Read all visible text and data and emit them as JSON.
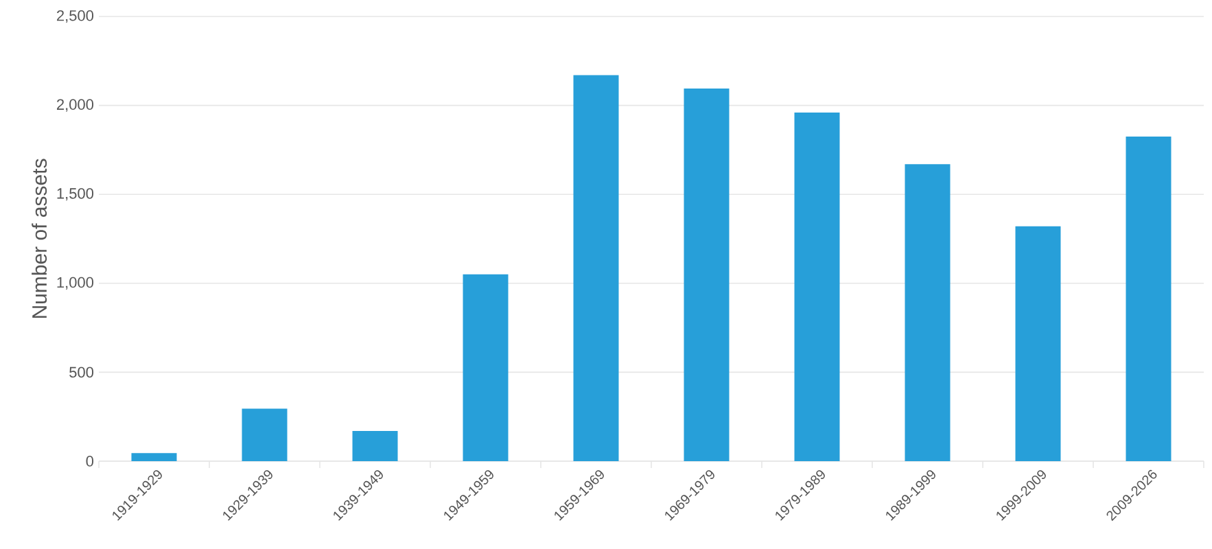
{
  "chart_data": {
    "type": "bar",
    "ylabel": "Number of assets",
    "categories": [
      "1919-1929",
      "1929-1939",
      "1939-1949",
      "1949-1959",
      "1959-1969",
      "1969-1979",
      "1979-1989",
      "1989-1999",
      "1999-2009",
      "2009-2026"
    ],
    "values": [
      45,
      295,
      170,
      1050,
      2170,
      2095,
      1960,
      1670,
      1320,
      1825
    ],
    "color": "#279fd9",
    "ylim": [
      0,
      2500
    ],
    "yticks": [
      {
        "value": 0,
        "label": "0"
      },
      {
        "value": 500,
        "label": "500"
      },
      {
        "value": 1000,
        "label": "1,000"
      },
      {
        "value": 1500,
        "label": "1,500"
      },
      {
        "value": 2000,
        "label": "2,000"
      },
      {
        "value": 2500,
        "label": "2,500"
      }
    ],
    "grid": "y"
  }
}
